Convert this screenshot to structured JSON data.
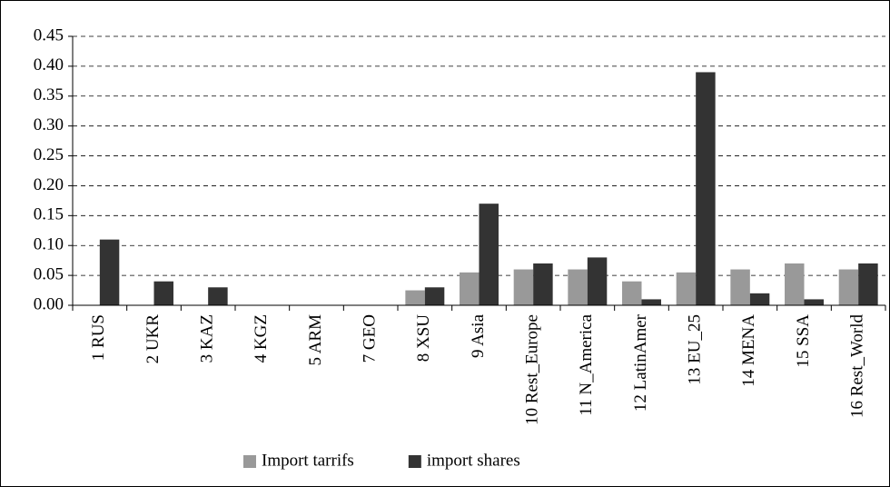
{
  "chart_data": {
    "type": "bar",
    "categories": [
      "1 RUS",
      "2 UKR",
      "3 KAZ",
      "4 KGZ",
      "5 ARM",
      "7 GEO",
      "8 XSU",
      "9 Asia",
      "10 Rest_Europe",
      "11 N_America",
      "12 LatinAmer",
      "13 EU_25",
      "14 MENA",
      "15 SSA",
      "16 Rest_World"
    ],
    "series": [
      {
        "name": "Import tarrifs",
        "color": "#999999",
        "values": [
          0,
          0,
          0,
          0,
          0,
          0,
          0.025,
          0.055,
          0.06,
          0.06,
          0.04,
          0.055,
          0.06,
          0.07,
          0.06
        ]
      },
      {
        "name": "import shares",
        "color": "#333333",
        "values": [
          0.11,
          0.04,
          0.03,
          0,
          0,
          0,
          0.03,
          0.17,
          0.07,
          0.08,
          0.01,
          0.39,
          0.02,
          0.01,
          0.07
        ]
      }
    ],
    "ylim": [
      0,
      0.45
    ],
    "yticks": [
      {
        "value": 0,
        "label": "0.00"
      },
      {
        "value": 0.05,
        "label": "0.05"
      },
      {
        "value": 0.1,
        "label": "0.10"
      },
      {
        "value": 0.15,
        "label": "0.15"
      },
      {
        "value": 0.2,
        "label": "0.20"
      },
      {
        "value": 0.25,
        "label": "0.25"
      },
      {
        "value": 0.3,
        "label": "0.30"
      },
      {
        "value": 0.35,
        "label": "0.35"
      },
      {
        "value": 0.4,
        "label": "0.40"
      },
      {
        "value": 0.45,
        "label": "0.45"
      }
    ],
    "grid": true,
    "legend": "bottom"
  }
}
